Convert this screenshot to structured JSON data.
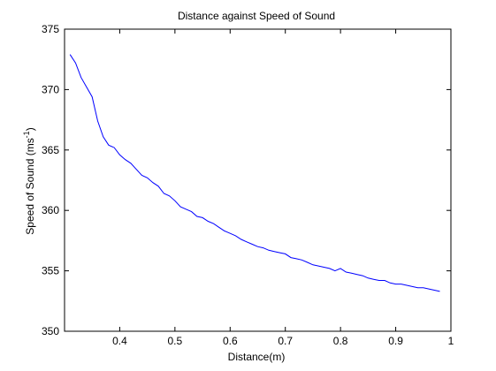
{
  "chart_data": {
    "type": "line",
    "title": "Distance against Speed of Sound",
    "xlabel": "Distance(m)",
    "ylabel": "Speed of Sound (ms-1)",
    "ylabel_parts": {
      "base": "Speed of Sound (ms",
      "sup": "-1",
      "tail": ")"
    },
    "xlim": [
      0.3,
      1.0
    ],
    "ylim": [
      350,
      375
    ],
    "x_ticks": [
      "0.4",
      "0.5",
      "0.6",
      "0.7",
      "0.8",
      "0.9",
      "1"
    ],
    "x_tick_values": [
      0.4,
      0.5,
      0.6,
      0.7,
      0.8,
      0.9,
      1.0
    ],
    "y_ticks": [
      "350",
      "355",
      "360",
      "365",
      "370",
      "375"
    ],
    "y_tick_values": [
      350,
      355,
      360,
      365,
      370,
      375
    ],
    "grid": false,
    "line_color": "#0000ff",
    "series": [
      {
        "x": [
          0.31,
          0.32,
          0.33,
          0.34,
          0.35,
          0.36,
          0.37,
          0.38,
          0.39,
          0.4,
          0.41,
          0.42,
          0.43,
          0.44,
          0.45,
          0.46,
          0.47,
          0.48,
          0.49,
          0.5,
          0.51,
          0.52,
          0.53,
          0.54,
          0.55,
          0.56,
          0.57,
          0.58,
          0.59,
          0.6,
          0.61,
          0.62,
          0.63,
          0.64,
          0.65,
          0.66,
          0.67,
          0.68,
          0.69,
          0.7,
          0.71,
          0.72,
          0.73,
          0.74,
          0.75,
          0.76,
          0.77,
          0.78,
          0.79,
          0.8,
          0.81,
          0.82,
          0.83,
          0.84,
          0.85,
          0.86,
          0.87,
          0.88,
          0.89,
          0.9,
          0.91,
          0.92,
          0.93,
          0.94,
          0.95,
          0.96,
          0.97,
          0.98
        ],
        "y": [
          372.9,
          372.2,
          371.0,
          370.2,
          369.4,
          367.4,
          366.1,
          365.4,
          365.2,
          364.6,
          364.2,
          363.9,
          363.4,
          362.9,
          362.7,
          362.3,
          362.0,
          361.4,
          361.2,
          360.8,
          360.3,
          360.1,
          359.9,
          359.5,
          359.4,
          359.1,
          358.9,
          358.6,
          358.3,
          358.1,
          357.9,
          357.6,
          357.4,
          357.2,
          357.0,
          356.9,
          356.7,
          356.6,
          356.5,
          356.4,
          356.1,
          356.0,
          355.9,
          355.7,
          355.5,
          355.4,
          355.3,
          355.2,
          355.0,
          355.2,
          354.9,
          354.8,
          354.7,
          354.6,
          354.4,
          354.3,
          354.2,
          354.2,
          354.0,
          353.9,
          353.9,
          353.8,
          353.7,
          353.6,
          353.6,
          353.5,
          353.4,
          353.3
        ]
      }
    ]
  }
}
